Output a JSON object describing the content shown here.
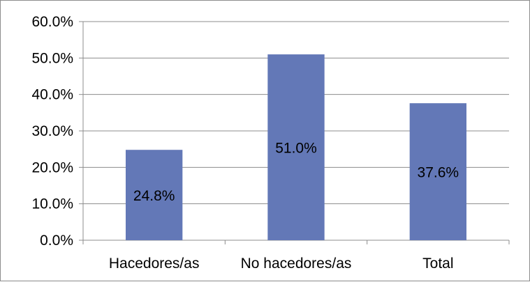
{
  "chart_data": {
    "type": "bar",
    "categories": [
      "Hacedores/as",
      "No hacedores/as",
      "Total"
    ],
    "values": [
      24.8,
      51.0,
      37.6
    ],
    "data_labels": [
      "24.8%",
      "51.0%",
      "37.6%"
    ],
    "y_ticks": [
      "0.0%",
      "10.0%",
      "20.0%",
      "30.0%",
      "40.0%",
      "50.0%",
      "60.0%"
    ],
    "ylim": [
      0,
      60
    ],
    "title": "",
    "xlabel": "",
    "ylabel": "",
    "grid": true,
    "legend": "none",
    "bar_color": "#6378b7",
    "grid_color": "#8c8c8c"
  }
}
